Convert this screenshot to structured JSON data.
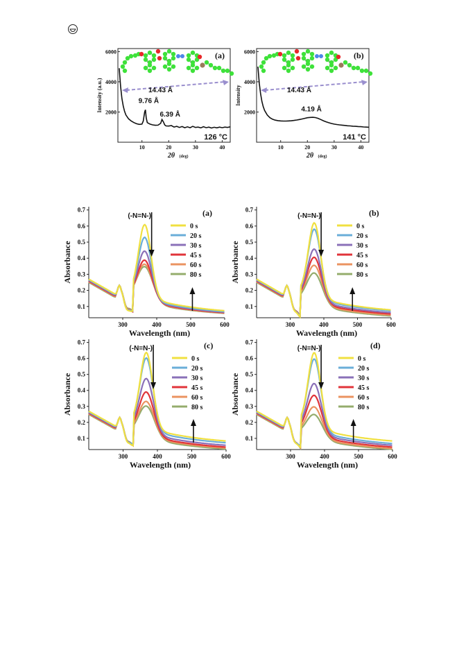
{
  "page": {
    "corner_icon": "circled-symbol-icon"
  },
  "colors": {
    "curve": "#111111",
    "atom_carbon": "#3ee23a",
    "atom_oxygen": "#e8282a",
    "atom_nitrogen": "#4d86e8",
    "atom_sulfur": "#9a7a5a",
    "dashed_arrow": "#9a8fce",
    "series": [
      "#f0e040",
      "#6aaed8",
      "#8a70b8",
      "#e0343a",
      "#eb9360",
      "#94ac6c"
    ]
  },
  "chart_data": [
    {
      "id": "xrd-a",
      "type": "line",
      "panel_label": "(a)",
      "xlabel": "2θ",
      "xlabel_unit": "(deg)",
      "ylabel": "Intensity (a.u.)",
      "xlim": [
        1,
        43
      ],
      "ylim": [
        0,
        6200
      ],
      "xticks": [
        10,
        20,
        30,
        40
      ],
      "yticks": [
        2000,
        4000,
        6000
      ],
      "x": [
        1.5,
        2,
        2.5,
        3,
        3.5,
        4,
        5,
        6,
        7,
        8,
        9,
        10,
        10.5,
        11,
        11.3,
        11.6,
        12,
        13,
        14,
        15,
        16,
        17,
        17.5,
        18,
        18.5,
        19,
        20,
        21,
        22,
        23,
        24,
        25,
        26,
        27,
        28,
        29,
        30,
        31,
        32,
        33,
        34,
        35,
        36,
        37,
        38,
        39,
        40,
        41,
        42,
        43
      ],
      "y": [
        4900,
        3700,
        2900,
        2400,
        2050,
        1800,
        1550,
        1400,
        1300,
        1220,
        1180,
        1200,
        1400,
        2000,
        2150,
        1600,
        1300,
        1200,
        1150,
        1120,
        1130,
        1250,
        1500,
        1350,
        1150,
        1080,
        1070,
        1100,
        1000,
        1050,
        980,
        1040,
        960,
        1020,
        960,
        1050,
        980,
        1000,
        950,
        1030,
        960,
        1000,
        940,
        990,
        950,
        1000,
        960,
        1000,
        980,
        1020
      ],
      "annotations": [
        "14.43 Å",
        "9.76 Å",
        "6.39 Å",
        "126 °C"
      ]
    },
    {
      "id": "xrd-b",
      "type": "line",
      "panel_label": "(b)",
      "xlabel": "2θ",
      "xlabel_unit": "(deg)",
      "ylabel": "Intensity",
      "xlim": [
        1,
        43
      ],
      "ylim": [
        0,
        6200
      ],
      "xticks": [
        10,
        20,
        30,
        40
      ],
      "yticks": [
        2000,
        4000,
        6000
      ],
      "x": [
        1.5,
        2,
        2.5,
        3,
        3.5,
        4,
        5,
        6,
        7,
        8,
        9,
        10,
        11,
        12,
        13,
        14,
        15,
        16,
        17,
        18,
        19,
        20,
        21,
        22,
        23,
        24,
        25,
        26,
        27,
        28,
        29,
        30,
        31,
        32,
        33,
        34,
        35,
        36,
        37,
        38,
        39,
        40,
        41,
        42,
        43
      ],
      "y": [
        5000,
        3900,
        3200,
        2700,
        2350,
        2100,
        1800,
        1620,
        1520,
        1460,
        1430,
        1410,
        1400,
        1400,
        1410,
        1420,
        1440,
        1470,
        1500,
        1540,
        1580,
        1620,
        1640,
        1650,
        1630,
        1580,
        1500,
        1420,
        1350,
        1290,
        1240,
        1200,
        1170,
        1150,
        1130,
        1110,
        1090,
        1080,
        1060,
        1050,
        1040,
        1030,
        1010,
        1000,
        990
      ],
      "annotations": [
        "14.43 Å",
        "4.19 Å",
        "141 °C"
      ]
    },
    {
      "id": "uv-a",
      "type": "line",
      "panel_label": "(a)",
      "xlabel": "Wavelength (nm)",
      "ylabel": "Absorbance",
      "xlim": [
        200,
        600
      ],
      "ylim": [
        0.03,
        0.72
      ],
      "xticks": [
        300,
        400,
        500,
        600
      ],
      "yticks": [
        0.1,
        0.2,
        0.3,
        0.4,
        0.5,
        0.6,
        0.7
      ],
      "annotation": "(-N=N-)",
      "peak_nm": 365,
      "series": [
        {
          "name": "0 s",
          "values_at_peak": 0.6
        },
        {
          "name": "20 s",
          "values_at_peak": 0.53
        },
        {
          "name": "30 s",
          "values_at_peak": 0.45
        },
        {
          "name": "45 s",
          "values_at_peak": 0.4
        },
        {
          "name": "60 s",
          "values_at_peak": 0.38
        },
        {
          "name": "80 s",
          "values_at_peak": 0.37
        }
      ],
      "tail_spread": [
        0.075,
        0.07,
        0.068,
        0.066,
        0.065,
        0.064
      ]
    },
    {
      "id": "uv-b",
      "type": "line",
      "panel_label": "(b)",
      "xlabel": "Wavelength (nm)",
      "ylabel": "Absorbance",
      "xlim": [
        200,
        600
      ],
      "ylim": [
        0.03,
        0.72
      ],
      "xticks": [
        300,
        400,
        500,
        600
      ],
      "yticks": [
        0.1,
        0.2,
        0.3,
        0.4,
        0.5,
        0.6,
        0.7
      ],
      "annotation": "(-N=N-)",
      "peak_nm": 372,
      "series": [
        {
          "name": "0 s",
          "values_at_peak": 0.61
        },
        {
          "name": "20 s",
          "values_at_peak": 0.58
        },
        {
          "name": "30 s",
          "values_at_peak": 0.47
        },
        {
          "name": "45 s",
          "values_at_peak": 0.43
        },
        {
          "name": "60 s",
          "values_at_peak": 0.39
        },
        {
          "name": "80 s",
          "values_at_peak": 0.35
        }
      ],
      "tail_spread": [
        0.08,
        0.075,
        0.065,
        0.058,
        0.052,
        0.048
      ]
    },
    {
      "id": "uv-c",
      "type": "line",
      "panel_label": "(c)",
      "xlabel": "Wavelength (nm)",
      "ylabel": "Absorbance",
      "xlim": [
        200,
        600
      ],
      "ylim": [
        0.03,
        0.72
      ],
      "xticks": [
        300,
        400,
        500,
        600
      ],
      "yticks": [
        0.1,
        0.2,
        0.3,
        0.4,
        0.5,
        0.6,
        0.7
      ],
      "annotation": "(-N=N-)",
      "peak_nm": 368,
      "series": [
        {
          "name": "0 s",
          "values_at_peak": 0.62
        },
        {
          "name": "20 s",
          "values_at_peak": 0.6
        },
        {
          "name": "30 s",
          "values_at_peak": 0.49
        },
        {
          "name": "45 s",
          "values_at_peak": 0.42
        },
        {
          "name": "60 s",
          "values_at_peak": 0.37
        },
        {
          "name": "80 s",
          "values_at_peak": 0.35
        }
      ],
      "tail_spread": [
        0.085,
        0.075,
        0.06,
        0.05,
        0.045,
        0.04
      ]
    },
    {
      "id": "uv-d",
      "type": "line",
      "panel_label": "(d)",
      "xlabel": "Wavelength (nm)",
      "ylabel": "Absorbance",
      "xlim": [
        200,
        600
      ],
      "ylim": [
        0.03,
        0.72
      ],
      "xticks": [
        300,
        400,
        500,
        600
      ],
      "yticks": [
        0.1,
        0.2,
        0.3,
        0.4,
        0.5,
        0.6,
        0.7
      ],
      "annotation": "(-N=N-)",
      "peak_nm": 370,
      "series": [
        {
          "name": "0 s",
          "values_at_peak": 0.62
        },
        {
          "name": "20 s",
          "values_at_peak": 0.6
        },
        {
          "name": "30 s",
          "values_at_peak": 0.46
        },
        {
          "name": "45 s",
          "values_at_peak": 0.4
        },
        {
          "name": "60 s",
          "values_at_peak": 0.34
        },
        {
          "name": "80 s",
          "values_at_peak": 0.3
        }
      ],
      "tail_spread": [
        0.085,
        0.07,
        0.06,
        0.05,
        0.042,
        0.038
      ]
    }
  ]
}
